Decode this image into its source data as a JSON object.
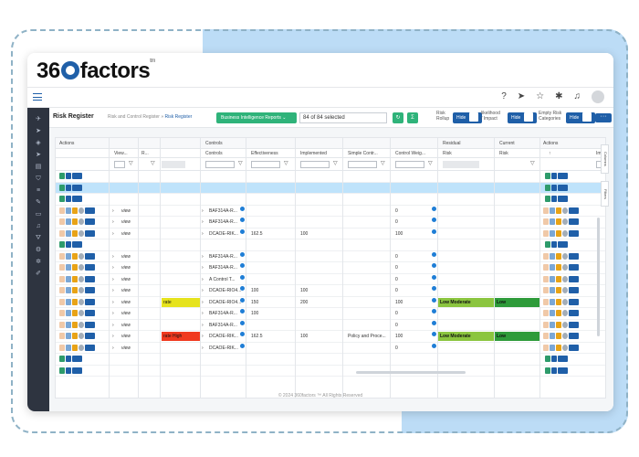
{
  "brand": {
    "logo_pre": "36",
    "logo_post": "factors",
    "trademark": "tm"
  },
  "topbar": {
    "icons": [
      "help-icon",
      "send-icon",
      "star-icon",
      "bug-icon",
      "bell-icon",
      "avatar"
    ]
  },
  "toolbar": {
    "page_title": "Risk Register",
    "breadcrumb_parent": "Risk and Control Register",
    "breadcrumb_sep": "»",
    "breadcrumb_current": "Risk Register",
    "bi_button": "Business Intelligence Reports ⌄",
    "selection": "84 of 84 selected",
    "rollup_label": "Risk\nRollup",
    "likelihood_label": "likelihood\n/ Impact",
    "empty_label": "Empty Risk\nCategories",
    "hide": "Hide",
    "more": "···"
  },
  "grid": {
    "group_headers": {
      "actions": "Actions",
      "controls": "Controls",
      "residual": "Residual",
      "current": "Current",
      "actions_right": "Actions"
    },
    "col_headers": [
      "View...",
      "R...",
      "Controls",
      "Effectiveness",
      "Implemented",
      "Simple Contr...",
      "Control Weig...",
      "Risk",
      "Risk",
      "↑",
      "Im"
    ],
    "view_text": "view",
    "rows": [
      {
        "type": "addrow"
      },
      {
        "type": "addrow",
        "sel": true
      },
      {
        "type": "addrow"
      },
      {
        "type": "data",
        "view": true,
        "control": "BAF314A-R...",
        "eff": "",
        "impl": "",
        "simple": "",
        "weight": "0",
        "risk": "",
        "cur": ""
      },
      {
        "type": "data",
        "view": true,
        "control": "BAF314A-R...",
        "eff": "",
        "impl": "",
        "simple": "",
        "weight": "0",
        "risk": "",
        "cur": ""
      },
      {
        "type": "data",
        "view": true,
        "control": "DCAOE-RIK...",
        "eff": "162.5",
        "impl": "100",
        "simple": "",
        "weight": "100",
        "risk": "",
        "cur": ""
      },
      {
        "type": "addrow"
      },
      {
        "type": "data",
        "view": true,
        "control": "BAF314A-R...",
        "eff": "",
        "impl": "",
        "simple": "",
        "weight": "0",
        "risk": "",
        "cur": ""
      },
      {
        "type": "data",
        "view": true,
        "control": "BAF314A-R...",
        "eff": "",
        "impl": "",
        "simple": "",
        "weight": "0",
        "risk": "",
        "cur": ""
      },
      {
        "type": "data",
        "view": true,
        "control": "A Control T...",
        "eff": "",
        "impl": "",
        "simple": "",
        "weight": "0",
        "risk": "",
        "cur": ""
      },
      {
        "type": "data",
        "view": true,
        "control": "DCAOE-RIO4...",
        "eff": "100",
        "impl": "100",
        "simple": "",
        "weight": "0",
        "risk": "",
        "cur": ""
      },
      {
        "type": "data",
        "view": true,
        "rcolor": "#e6e31d",
        "rtext": "rate",
        "control": "DCAOE-RIO4...",
        "eff": "150",
        "impl": "200",
        "simple": "",
        "weight": "100",
        "risk": "Low Moderate",
        "riskc": "#8bc53f",
        "cur": "Low",
        "curc": "#2e9b3a"
      },
      {
        "type": "data",
        "view": true,
        "control": "BAF314A-R...",
        "eff": "100",
        "impl": "",
        "simple": "",
        "weight": "0",
        "risk": "",
        "cur": ""
      },
      {
        "type": "data",
        "view": true,
        "control": "BAF314A-R...",
        "eff": "",
        "impl": "",
        "simple": "",
        "weight": "0",
        "risk": "",
        "cur": ""
      },
      {
        "type": "data",
        "view": true,
        "rcolor": "#f0391e",
        "rtext": "rate High",
        "control": "DCAOE-RIK...",
        "eff": "162.5",
        "impl": "100",
        "simple": "Policy and Proce...",
        "weight": "100",
        "risk": "Low Moderate",
        "riskc": "#8bc53f",
        "cur": "Low",
        "curc": "#2e9b3a"
      },
      {
        "type": "data",
        "view": true,
        "control": "DCAOE-RIK...",
        "eff": "",
        "impl": "",
        "simple": "",
        "weight": "0",
        "risk": "",
        "cur": ""
      },
      {
        "type": "addrow"
      },
      {
        "type": "addrow"
      }
    ]
  },
  "side_tabs": {
    "columns": "Columns",
    "filters": "Filters"
  },
  "footer": "© 2024 360factors ™ All Rights Reserved"
}
